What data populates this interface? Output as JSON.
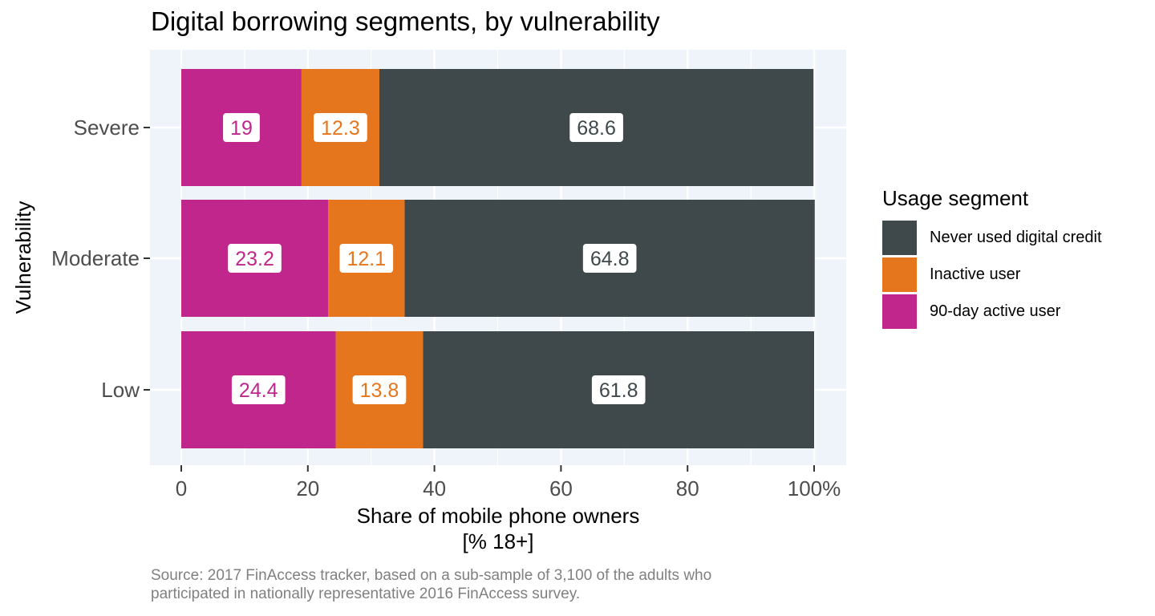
{
  "chart_data": {
    "type": "bar",
    "orientation": "horizontal",
    "stacked": true,
    "title": "Digital borrowing segments, by vulnerability",
    "xlabel_line1": "Share of mobile phone owners",
    "xlabel_line2": "[% 18+]",
    "ylabel": "Vulnerability",
    "categories": [
      "Severe",
      "Moderate",
      "Low"
    ],
    "series": [
      {
        "name": "90-day active user",
        "color": "#C1268D",
        "values": [
          19,
          23.2,
          24.4
        ],
        "labels": [
          "19",
          "23.2",
          "24.4"
        ]
      },
      {
        "name": "Inactive user",
        "color": "#E6761E",
        "values": [
          12.3,
          12.1,
          13.8
        ],
        "labels": [
          "12.3",
          "12.1",
          "13.8"
        ]
      },
      {
        "name": "Never used digital credit",
        "color": "#3F484A",
        "values": [
          68.6,
          64.8,
          61.8
        ],
        "labels": [
          "68.6",
          "64.8",
          "61.8"
        ]
      }
    ],
    "xlim": [
      0,
      100
    ],
    "xticks": [
      0,
      20,
      40,
      60,
      80,
      100
    ],
    "xtick_labels": [
      "0",
      "20",
      "40",
      "60",
      "80",
      "100%"
    ],
    "grid": true,
    "legend_title": "Usage segment",
    "legend_order": [
      "Never used digital credit",
      "Inactive user",
      "90-day active user"
    ],
    "legend_position": "right",
    "panel_background": "#EFF3FA",
    "source_line1": "Source: 2017 FinAccess tracker, based on a sub-sample of 3,100 of the adults who",
    "source_line2": "participated in nationally representative 2016 FinAccess survey."
  }
}
